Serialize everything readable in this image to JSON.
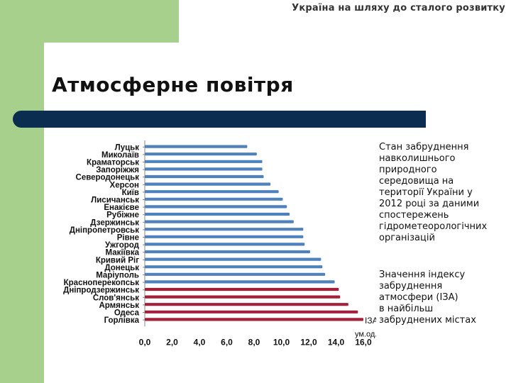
{
  "header": {
    "top_text": "Україна на шляху до сталого розвитку"
  },
  "slide": {
    "title": "Атмосферне повітря",
    "side_text_1": "Стан забруднення\nнавколишнього\nприродного\nсередовища на\nтериторії України у\n2012 році за даними\nспостережень\nгідрометеорологічних\nорганізацій",
    "side_text_2": "Значення індексу\nзабруднення\nатмосфери (ІЗА)\nв найбільш\nзабруднених містах"
  },
  "colors": {
    "blue_bar": "#4f81bd",
    "red_bar": "#a3203a",
    "green": "#a8d08d",
    "bar_navy": "#0b2d50"
  },
  "chart_data": {
    "type": "bar",
    "orientation": "horizontal",
    "categories": [
      "Луцьк",
      "Миколаїв",
      "Краматорськ",
      "Запоріжжя",
      "Северодонецьк",
      "Херсон",
      "Київ",
      "Лисичанськ",
      "Енакієве",
      "Рубіжне",
      "Дзержинськ",
      "Дніпропетровськ",
      "Рівне",
      "Ужгород",
      "Макіївка",
      "Кривий Ріг",
      "Донецьк",
      "Маріуполь",
      "Красноперекопськ",
      "Дніпродзержинськ",
      "Слов'янськ",
      "Армянськ",
      "Одеса",
      "Горлівка"
    ],
    "values": [
      7.5,
      8.2,
      8.6,
      8.6,
      8.7,
      9.2,
      9.8,
      10.1,
      10.4,
      10.6,
      10.9,
      11.6,
      11.6,
      11.7,
      12.1,
      12.9,
      13.0,
      13.2,
      13.9,
      14.2,
      14.3,
      14.9,
      15.6,
      16.0
    ],
    "highlight_from_index": 19,
    "x_ticks": [
      "0,0",
      "2,0",
      "4,0",
      "6,0",
      "8,0",
      "10,0",
      "12,0",
      "14,0",
      "16,0"
    ],
    "xlim": [
      0,
      16
    ],
    "xlabel": "ум.од.",
    "series_label": "ІЗА",
    "grid": false
  }
}
